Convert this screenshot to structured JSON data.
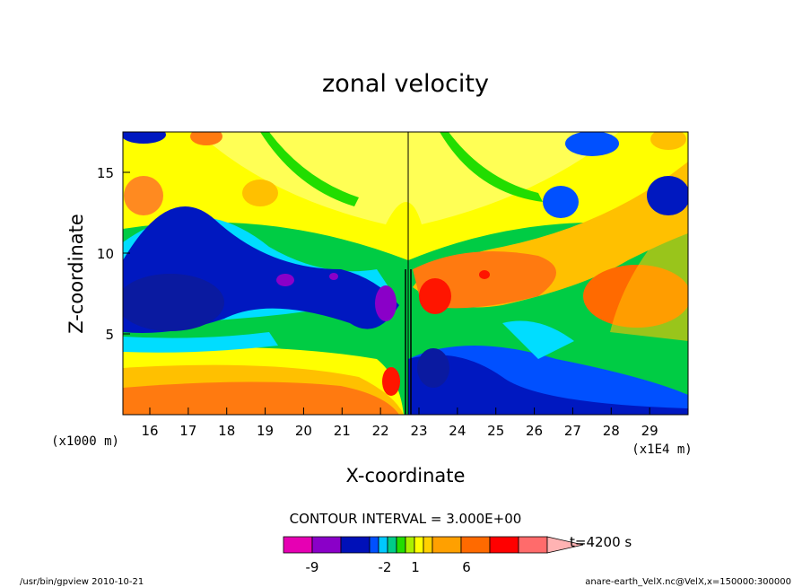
{
  "chart_data": {
    "type": "heatmap",
    "title": "zonal velocity",
    "xlabel": "X-coordinate",
    "ylabel": "Z-coordinate",
    "x_scale_note": "(x1E4 m)",
    "y_scale_note": "(x1000 m)",
    "xlim": [
      15.3,
      30.0
    ],
    "ylim": [
      0,
      17.5
    ],
    "x_ticks": [
      "16",
      "17",
      "18",
      "19",
      "20",
      "21",
      "22",
      "23",
      "24",
      "25",
      "26",
      "27",
      "28",
      "29"
    ],
    "y_ticks": [
      "5",
      "10",
      "15"
    ],
    "contour_interval": "CONTOUR INTERVAL = 3.000E+00",
    "time_label": "t=4200 s",
    "colorbar": {
      "tick_labels": [
        "-9",
        "-2",
        "1",
        "6"
      ],
      "colors": [
        "#e600b3",
        "#8a00c8",
        "#0010b8",
        "#0050ff",
        "#00c8ff",
        "#00cc88",
        "#22dd00",
        "#aaf000",
        "#ffff00",
        "#ffd000",
        "#ffa000",
        "#ff6a00",
        "#ff0000",
        "#ff6b6b",
        "#ffb3b3"
      ]
    },
    "footer_left": "/usr/bin/gpview   2010-10-21",
    "footer_right": "anare-earth_VelX.nc@VelX,x=150000:300000"
  }
}
